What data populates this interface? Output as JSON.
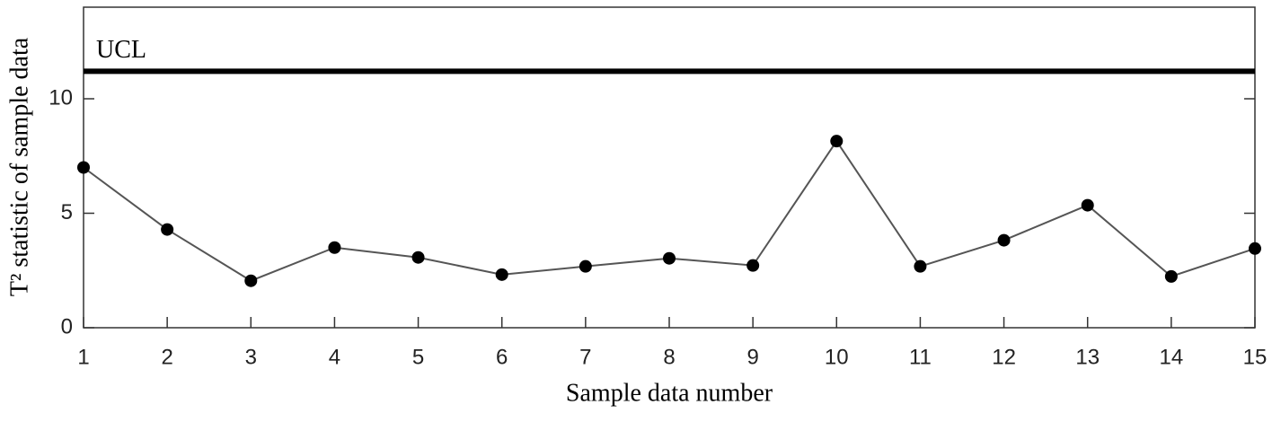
{
  "chart_data": {
    "type": "line",
    "x_label": "Sample data number",
    "y_label": "T² statistic of sample data",
    "x": [
      1,
      2,
      3,
      4,
      5,
      6,
      7,
      8,
      9,
      10,
      11,
      12,
      13,
      14,
      15
    ],
    "series": [
      {
        "name": "T²",
        "color": "#555555",
        "values": [
          7.0,
          4.29,
          2.05,
          3.5,
          3.07,
          2.32,
          2.68,
          3.03,
          2.72,
          8.15,
          2.68,
          3.82,
          5.35,
          2.24,
          3.46
        ]
      }
    ],
    "xlim": [
      1,
      15
    ],
    "xticks": [
      1,
      2,
      3,
      4,
      5,
      6,
      7,
      8,
      9,
      10,
      11,
      12,
      13,
      14,
      15
    ],
    "ylim": [
      0,
      14
    ],
    "yticks": [
      0,
      5,
      10
    ],
    "ucl": {
      "label": "UCL",
      "value": 11.2
    }
  }
}
